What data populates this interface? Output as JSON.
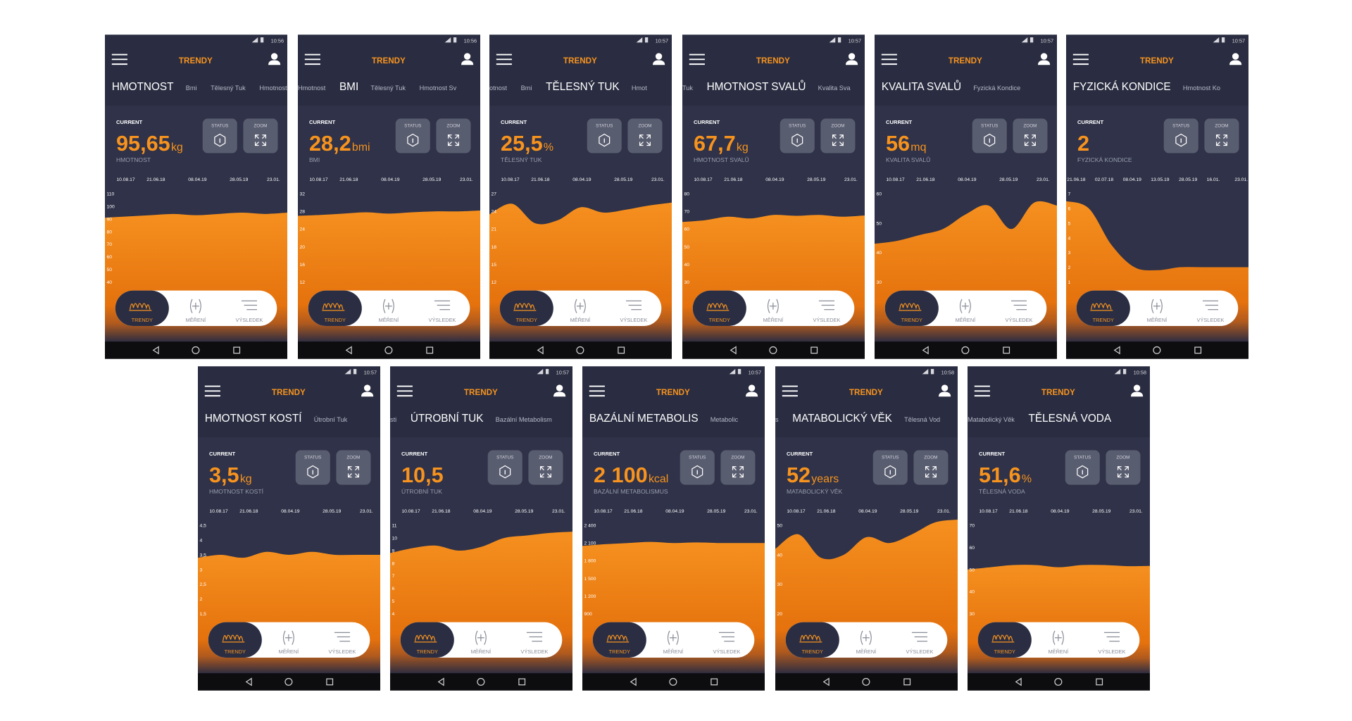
{
  "common": {
    "header_title": "TRENDY",
    "current_label": "CURRENT",
    "status": "STATUS",
    "zoom": "ZOOM",
    "nav": [
      "TRENDY",
      "MĚŘENÍ",
      "VÝSLEDEK"
    ]
  },
  "screens": [
    {
      "time": "10:56",
      "tab_active": "HMOTNOST",
      "tabs_right": [
        "Bmi",
        "Tělesný Tuk",
        "Hmotnost Svalů"
      ],
      "current": "95,65",
      "unit": "kg",
      "metric": "HMOTNOST",
      "dates": [
        "10.08.17",
        "21.06.18",
        "08.04.19",
        "28.05.19",
        "23.01."
      ],
      "ylim": [
        40,
        110
      ],
      "yticks": [
        110,
        100,
        90,
        80,
        70,
        60,
        50,
        40
      ],
      "trend": [
        91,
        92,
        93,
        94,
        93,
        94,
        95,
        94,
        95
      ]
    },
    {
      "time": "10:56",
      "tabs_left": [
        "Hmotnost"
      ],
      "tab_active": "BMI",
      "tabs_right": [
        "Tělesný Tuk",
        "Hmotnost Sv"
      ],
      "current": "28,2",
      "unit": "bmi",
      "metric": "BMI",
      "dates": [
        "10.08.17",
        "21.06.18",
        "08.04.19",
        "28.05.19",
        "23.01."
      ],
      "ylim": [
        12,
        32
      ],
      "yticks": [
        32,
        28,
        24,
        20,
        16,
        12
      ],
      "trend": [
        27,
        27.2,
        27.5,
        27.8,
        27.5,
        27.8,
        28,
        28,
        28.2
      ]
    },
    {
      "time": "10:57",
      "tabs_left": [
        "otnost",
        "Bmi"
      ],
      "tab_active": "TĚLESNÝ TUK",
      "tabs_right": [
        "Hmot"
      ],
      "current": "25,5",
      "unit": "%",
      "metric": "TĚLESNÝ TUK",
      "dates": [
        "10.08.17",
        "21.06.18",
        "08.04.19",
        "28.05.19",
        "23.01."
      ],
      "ylim": [
        12,
        27
      ],
      "yticks": [
        27,
        24,
        21,
        18,
        15,
        12
      ],
      "trend": [
        23.5,
        25.3,
        22,
        22.5,
        24.7,
        23.8,
        24.3,
        25,
        25.5
      ]
    },
    {
      "time": "10:57",
      "tabs_left": [
        "Tuk"
      ],
      "tab_active": "HMOTNOST SVALŮ",
      "tabs_right": [
        "Kvalita Sva"
      ],
      "current": "67,7",
      "unit": "kg",
      "metric": "HMOTNOST SVALŮ",
      "dates": [
        "10.08.17",
        "21.06.18",
        "08.04.19",
        "28.05.19",
        "23.01."
      ],
      "ylim": [
        30,
        80
      ],
      "yticks": [
        80,
        70,
        60,
        50,
        40,
        30
      ],
      "trend": [
        64,
        65,
        67,
        66,
        68,
        67.5,
        68,
        67,
        67.7
      ]
    },
    {
      "time": "10:57",
      "tab_active": "KVALITA SVALŮ",
      "tabs_right": [
        "Fyzická Kondice"
      ],
      "current": "56",
      "unit": "mq",
      "metric": "KVALITA SVALŮ",
      "dates": [
        "10.08.17",
        "21.06.18",
        "08.04.19",
        "28.05.19",
        "23.01."
      ],
      "ylim": [
        30,
        60
      ],
      "yticks": [
        60,
        50,
        40,
        30
      ],
      "trend": [
        43,
        44,
        46,
        48,
        53,
        56,
        48,
        57,
        56
      ]
    },
    {
      "time": "10:57",
      "tab_active": "FYZICKÁ KONDICE",
      "tabs_right": [
        "Hmotnost Ko"
      ],
      "current": "2",
      "metric": "FYZICKÁ KONDICE",
      "dates": [
        "21.06.18",
        "02.07.18",
        "08.04.19",
        "13.05.19",
        "28.05.19",
        "16.01.",
        "23.01."
      ],
      "ylim": [
        1,
        7
      ],
      "yticks": [
        7,
        6,
        5,
        4,
        3,
        2,
        1
      ],
      "trend": [
        6.5,
        6,
        3.5,
        2,
        1.8,
        2,
        2,
        2,
        2
      ]
    },
    {
      "time": "10:57",
      "tab_active": "HMOTNOST KOSTÍ",
      "tabs_right": [
        "Útrobní Tuk"
      ],
      "current": "3,5",
      "unit": "kg",
      "metric": "HMOTNOST KOSTÍ",
      "dates": [
        "10.08.17",
        "21.06.18",
        "08.04.19",
        "28.05.19",
        "23.01."
      ],
      "ylim": [
        1.5,
        4.5
      ],
      "yticks": [
        {
          "value": 4.5,
          "label": "4,5"
        },
        4,
        {
          "value": 3.5,
          "label": "3,5"
        },
        3,
        {
          "value": 2.5,
          "label": "2,5"
        },
        2,
        {
          "value": 1.5,
          "label": "1,5"
        }
      ],
      "trend": [
        3.4,
        3.5,
        3.4,
        3.6,
        3.5,
        3.6,
        3.5,
        3.5,
        3.5
      ]
    },
    {
      "time": "10:57",
      "tabs_left": [
        "sti"
      ],
      "tab_active": "ÚTROBNÍ TUK",
      "tabs_right": [
        "Bazální Metabolism"
      ],
      "current": "10,5",
      "metric": "ÚTROBNÍ TUK",
      "dates": [
        "10.08.17",
        "21.06.18",
        "08.04.19",
        "28.05.19",
        "23.01."
      ],
      "ylim": [
        4,
        11
      ],
      "yticks": [
        11,
        10,
        9,
        8,
        7,
        6,
        5,
        4
      ],
      "trend": [
        8.8,
        9.2,
        9.4,
        9,
        9.3,
        10,
        10.2,
        10.4,
        10.5
      ]
    },
    {
      "time": "10:57",
      "tab_active": "BAZÁLNÍ METABOLIS",
      "tabs_right": [
        "Metabolic"
      ],
      "current": "2 100",
      "unit": "kcal",
      "metric": "BAZÁLNÍ METABOLISMUS",
      "dates": [
        "10.08.17",
        "21.06.18",
        "08.04.19",
        "28.05.19",
        "23.01."
      ],
      "ylim": [
        900,
        2400
      ],
      "yticks": [
        {
          "value": 2400,
          "label": "2 400"
        },
        {
          "value": 2100,
          "label": "2 100"
        },
        {
          "value": 1800,
          "label": "1 800"
        },
        {
          "value": 1500,
          "label": "1 500"
        },
        {
          "value": 1200,
          "label": "1 200"
        },
        900
      ],
      "trend": [
        2050,
        2080,
        2100,
        2120,
        2100,
        2110,
        2100,
        2100,
        2100
      ]
    },
    {
      "time": "10:58",
      "tabs_left": [
        "s"
      ],
      "tab_active": "MATABOLICKÝ VĚK",
      "tabs_right": [
        "Tělesná Vod"
      ],
      "current": "52",
      "unit": "years",
      "metric": "MATABOLICKÝ VĚK",
      "dates": [
        "10.08.17",
        "21.06.18",
        "08.04.19",
        "28.05.19",
        "23.01."
      ],
      "ylim": [
        20,
        50
      ],
      "yticks": [
        50,
        40,
        30,
        20
      ],
      "trend": [
        42,
        47,
        39,
        40,
        46,
        44,
        47,
        51,
        52
      ]
    },
    {
      "time": "10:58",
      "tabs_left": [
        "Matabolický Věk"
      ],
      "tab_active": "TĚLESNÁ VODA",
      "current": "51,6",
      "unit": "%",
      "metric": "TĚLESNÁ VODA",
      "dates": [
        "10.08.17",
        "21.06.18",
        "08.04.19",
        "28.05.19",
        "23.01."
      ],
      "ylim": [
        30,
        70
      ],
      "yticks": [
        70,
        60,
        50,
        40,
        30
      ],
      "trend": [
        50,
        51,
        52,
        52,
        51,
        52,
        52,
        51.5,
        51.6
      ]
    }
  ]
}
